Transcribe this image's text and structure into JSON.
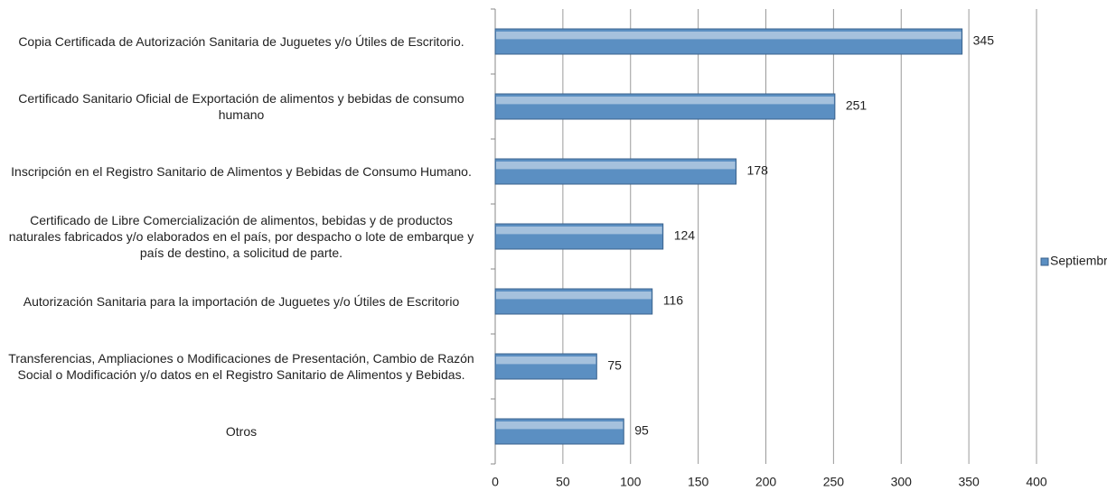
{
  "chart_data": {
    "type": "bar",
    "orientation": "horizontal",
    "categories": [
      "Copia Certificada de Autorización Sanitaria de Juguetes y/o Útiles de Escritorio.",
      "Certificado Sanitario Oficial de Exportación de alimentos y bebidas de consumo humano",
      "Inscripción en el Registro Sanitario de Alimentos y Bebidas de Consumo Humano.",
      "Certificado de Libre Comercialización de alimentos, bebidas y de productos naturales fabricados y/o elaborados en el país, por despacho o lote de embarque y país de destino, a solicitud de parte.",
      "Autorización Sanitaria para la importación de Juguetes y/o Útiles de Escritorio",
      "Transferencias, Ampliaciones o Modificaciones de Presentación, Cambio de Razón Social o Modificación y/o datos en el Registro Sanitario de Alimentos y Bebidas.",
      "Otros"
    ],
    "series": [
      {
        "name": "Septiembre",
        "color": "#5b8fc2",
        "values": [
          345,
          251,
          178,
          124,
          116,
          75,
          95
        ]
      }
    ],
    "xlim": [
      0,
      400
    ],
    "xticks": [
      0,
      50,
      100,
      150,
      200,
      250,
      300,
      350,
      400
    ],
    "grid": true,
    "legend": "right"
  }
}
